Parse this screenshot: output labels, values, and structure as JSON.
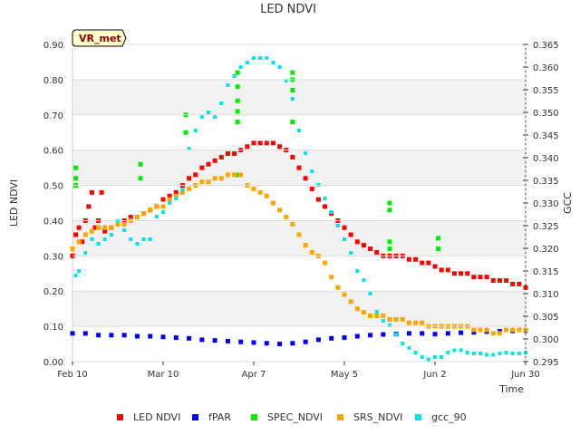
{
  "chart_data": {
    "type": "scatter",
    "title": "LED NDVI",
    "badge": "VR_met",
    "xlabel": "Time",
    "ylabel_left": "LED NDVI",
    "ylabel_right": "GCC",
    "x_range_days": [
      0,
      140
    ],
    "x_ticks": [
      {
        "day": 0,
        "label": "Feb 10"
      },
      {
        "day": 28,
        "label": "Mar 10"
      },
      {
        "day": 56,
        "label": "Apr 7"
      },
      {
        "day": 84,
        "label": "May 5"
      },
      {
        "day": 112,
        "label": "Jun 2"
      },
      {
        "day": 140,
        "label": "Jun 30"
      }
    ],
    "y_left_range": [
      0.0,
      0.9
    ],
    "y_left_ticks": [
      "0.00",
      "0.10",
      "0.20",
      "0.30",
      "0.40",
      "0.50",
      "0.60",
      "0.70",
      "0.80",
      "0.90"
    ],
    "y_right_range": [
      0.295,
      0.365
    ],
    "y_right_ticks": [
      "0.295",
      "0.300",
      "0.305",
      "0.310",
      "0.315",
      "0.320",
      "0.325",
      "0.330",
      "0.335",
      "0.340",
      "0.345",
      "0.350",
      "0.355",
      "0.360",
      "0.365"
    ],
    "series": [
      {
        "name": "LED NDVI",
        "color": "#ff0000",
        "axis": "left",
        "points": [
          [
            0,
            0.3
          ],
          [
            1,
            0.36
          ],
          [
            2,
            0.38
          ],
          [
            3,
            0.34
          ],
          [
            4,
            0.4
          ],
          [
            5,
            0.44
          ],
          [
            6,
            0.48
          ],
          [
            7,
            0.38
          ],
          [
            8,
            0.4
          ],
          [
            9,
            0.48
          ],
          [
            10,
            0.37
          ],
          [
            12,
            0.38
          ],
          [
            14,
            0.39
          ],
          [
            16,
            0.4
          ],
          [
            18,
            0.41
          ],
          [
            20,
            0.41
          ],
          [
            22,
            0.42
          ],
          [
            24,
            0.43
          ],
          [
            26,
            0.44
          ],
          [
            28,
            0.46
          ],
          [
            30,
            0.47
          ],
          [
            32,
            0.48
          ],
          [
            34,
            0.5
          ],
          [
            36,
            0.52
          ],
          [
            38,
            0.53
          ],
          [
            40,
            0.55
          ],
          [
            42,
            0.56
          ],
          [
            44,
            0.57
          ],
          [
            46,
            0.58
          ],
          [
            48,
            0.59
          ],
          [
            50,
            0.59
          ],
          [
            52,
            0.6
          ],
          [
            54,
            0.61
          ],
          [
            56,
            0.62
          ],
          [
            58,
            0.62
          ],
          [
            60,
            0.62
          ],
          [
            62,
            0.62
          ],
          [
            64,
            0.61
          ],
          [
            66,
            0.6
          ],
          [
            68,
            0.58
          ],
          [
            70,
            0.55
          ],
          [
            72,
            0.52
          ],
          [
            74,
            0.49
          ],
          [
            76,
            0.46
          ],
          [
            78,
            0.44
          ],
          [
            80,
            0.42
          ],
          [
            82,
            0.4
          ],
          [
            84,
            0.38
          ],
          [
            86,
            0.36
          ],
          [
            88,
            0.34
          ],
          [
            90,
            0.33
          ],
          [
            92,
            0.32
          ],
          [
            94,
            0.31
          ],
          [
            96,
            0.3
          ],
          [
            98,
            0.3
          ],
          [
            100,
            0.3
          ],
          [
            102,
            0.3
          ],
          [
            104,
            0.29
          ],
          [
            106,
            0.29
          ],
          [
            108,
            0.28
          ],
          [
            110,
            0.28
          ],
          [
            112,
            0.27
          ],
          [
            114,
            0.26
          ],
          [
            116,
            0.26
          ],
          [
            118,
            0.25
          ],
          [
            120,
            0.25
          ],
          [
            122,
            0.25
          ],
          [
            124,
            0.24
          ],
          [
            126,
            0.24
          ],
          [
            128,
            0.24
          ],
          [
            130,
            0.23
          ],
          [
            132,
            0.23
          ],
          [
            134,
            0.23
          ],
          [
            136,
            0.22
          ],
          [
            138,
            0.22
          ],
          [
            140,
            0.21
          ]
        ]
      },
      {
        "name": "fPAR",
        "color": "#0000ff",
        "axis": "left",
        "points": [
          [
            0,
            0.08
          ],
          [
            4,
            0.08
          ],
          [
            8,
            0.075
          ],
          [
            12,
            0.075
          ],
          [
            16,
            0.075
          ],
          [
            20,
            0.072
          ],
          [
            24,
            0.072
          ],
          [
            28,
            0.07
          ],
          [
            32,
            0.068
          ],
          [
            36,
            0.066
          ],
          [
            40,
            0.062
          ],
          [
            44,
            0.06
          ],
          [
            48,
            0.058
          ],
          [
            52,
            0.056
          ],
          [
            56,
            0.054
          ],
          [
            60,
            0.052
          ],
          [
            64,
            0.05
          ],
          [
            68,
            0.052
          ],
          [
            72,
            0.056
          ],
          [
            76,
            0.062
          ],
          [
            80,
            0.066
          ],
          [
            84,
            0.068
          ],
          [
            88,
            0.072
          ],
          [
            92,
            0.075
          ],
          [
            96,
            0.077
          ],
          [
            100,
            0.078
          ],
          [
            104,
            0.08
          ],
          [
            108,
            0.08
          ],
          [
            112,
            0.078
          ],
          [
            116,
            0.08
          ],
          [
            120,
            0.082
          ],
          [
            124,
            0.083
          ],
          [
            128,
            0.085
          ],
          [
            132,
            0.086
          ],
          [
            136,
            0.087
          ],
          [
            140,
            0.088
          ]
        ]
      },
      {
        "name": "SPEC_NDVI",
        "color": "#00ee00",
        "axis": "left",
        "points": [
          [
            1,
            0.55
          ],
          [
            1,
            0.5
          ],
          [
            1,
            0.52
          ],
          [
            21,
            0.56
          ],
          [
            21,
            0.52
          ],
          [
            35,
            0.7
          ],
          [
            35,
            0.65
          ],
          [
            51,
            0.82
          ],
          [
            51,
            0.78
          ],
          [
            51,
            0.74
          ],
          [
            51,
            0.71
          ],
          [
            51,
            0.68
          ],
          [
            51,
            0.53
          ],
          [
            68,
            0.82
          ],
          [
            68,
            0.8
          ],
          [
            68,
            0.77
          ],
          [
            68,
            0.68
          ],
          [
            98,
            0.45
          ],
          [
            98,
            0.43
          ],
          [
            98,
            0.34
          ],
          [
            98,
            0.32
          ],
          [
            113,
            0.35
          ],
          [
            113,
            0.32
          ]
        ]
      },
      {
        "name": "SRS_NDVI",
        "color": "#ffa500",
        "axis": "left",
        "points": [
          [
            0,
            0.32
          ],
          [
            2,
            0.34
          ],
          [
            4,
            0.36
          ],
          [
            6,
            0.37
          ],
          [
            8,
            0.38
          ],
          [
            10,
            0.38
          ],
          [
            12,
            0.38
          ],
          [
            14,
            0.39
          ],
          [
            16,
            0.39
          ],
          [
            18,
            0.4
          ],
          [
            20,
            0.41
          ],
          [
            22,
            0.42
          ],
          [
            24,
            0.43
          ],
          [
            26,
            0.44
          ],
          [
            28,
            0.44
          ],
          [
            30,
            0.46
          ],
          [
            32,
            0.47
          ],
          [
            34,
            0.48
          ],
          [
            36,
            0.49
          ],
          [
            38,
            0.5
          ],
          [
            40,
            0.51
          ],
          [
            42,
            0.51
          ],
          [
            44,
            0.52
          ],
          [
            46,
            0.52
          ],
          [
            48,
            0.53
          ],
          [
            50,
            0.53
          ],
          [
            52,
            0.53
          ],
          [
            54,
            0.5
          ],
          [
            56,
            0.49
          ],
          [
            58,
            0.48
          ],
          [
            60,
            0.47
          ],
          [
            62,
            0.45
          ],
          [
            64,
            0.43
          ],
          [
            66,
            0.41
          ],
          [
            68,
            0.39
          ],
          [
            70,
            0.36
          ],
          [
            72,
            0.33
          ],
          [
            74,
            0.31
          ],
          [
            76,
            0.3
          ],
          [
            78,
            0.28
          ],
          [
            80,
            0.24
          ],
          [
            82,
            0.21
          ],
          [
            84,
            0.19
          ],
          [
            86,
            0.17
          ],
          [
            88,
            0.15
          ],
          [
            90,
            0.14
          ],
          [
            92,
            0.13
          ],
          [
            94,
            0.13
          ],
          [
            96,
            0.13
          ],
          [
            98,
            0.12
          ],
          [
            100,
            0.12
          ],
          [
            102,
            0.12
          ],
          [
            104,
            0.11
          ],
          [
            106,
            0.11
          ],
          [
            108,
            0.11
          ],
          [
            110,
            0.1
          ],
          [
            112,
            0.1
          ],
          [
            114,
            0.1
          ],
          [
            116,
            0.1
          ],
          [
            118,
            0.1
          ],
          [
            120,
            0.1
          ],
          [
            122,
            0.1
          ],
          [
            124,
            0.09
          ],
          [
            126,
            0.09
          ],
          [
            128,
            0.09
          ],
          [
            130,
            0.08
          ],
          [
            132,
            0.08
          ],
          [
            134,
            0.09
          ],
          [
            136,
            0.09
          ],
          [
            138,
            0.09
          ],
          [
            140,
            0.09
          ]
        ]
      },
      {
        "name": "gcc_90",
        "color": "#00e5ee",
        "axis": "right",
        "points": [
          [
            1,
            0.314
          ],
          [
            2,
            0.315
          ],
          [
            4,
            0.319
          ],
          [
            6,
            0.322
          ],
          [
            8,
            0.321
          ],
          [
            10,
            0.322
          ],
          [
            12,
            0.323
          ],
          [
            14,
            0.326
          ],
          [
            16,
            0.324
          ],
          [
            18,
            0.322
          ],
          [
            20,
            0.321
          ],
          [
            22,
            0.322
          ],
          [
            24,
            0.322
          ],
          [
            26,
            0.327
          ],
          [
            28,
            0.328
          ],
          [
            30,
            0.33
          ],
          [
            32,
            0.331
          ],
          [
            34,
            0.333
          ],
          [
            36,
            0.342
          ],
          [
            38,
            0.346
          ],
          [
            40,
            0.349
          ],
          [
            42,
            0.35
          ],
          [
            44,
            0.349
          ],
          [
            46,
            0.352
          ],
          [
            48,
            0.356
          ],
          [
            50,
            0.358
          ],
          [
            52,
            0.36
          ],
          [
            54,
            0.361
          ],
          [
            56,
            0.362
          ],
          [
            58,
            0.362
          ],
          [
            60,
            0.362
          ],
          [
            62,
            0.361
          ],
          [
            64,
            0.36
          ],
          [
            66,
            0.357
          ],
          [
            68,
            0.353
          ],
          [
            70,
            0.346
          ],
          [
            72,
            0.341
          ],
          [
            74,
            0.337
          ],
          [
            76,
            0.334
          ],
          [
            78,
            0.331
          ],
          [
            80,
            0.328
          ],
          [
            82,
            0.325
          ],
          [
            84,
            0.322
          ],
          [
            86,
            0.319
          ],
          [
            88,
            0.315
          ],
          [
            90,
            0.313
          ],
          [
            92,
            0.31
          ],
          [
            94,
            0.306
          ],
          [
            96,
            0.304
          ],
          [
            98,
            0.303
          ],
          [
            100,
            0.301
          ],
          [
            102,
            0.299
          ],
          [
            104,
            0.298
          ],
          [
            106,
            0.297
          ],
          [
            108,
            0.296
          ],
          [
            110,
            0.2955
          ],
          [
            112,
            0.296
          ],
          [
            114,
            0.296
          ],
          [
            116,
            0.297
          ],
          [
            118,
            0.2975
          ],
          [
            120,
            0.2975
          ],
          [
            122,
            0.297
          ],
          [
            124,
            0.2968
          ],
          [
            126,
            0.2968
          ],
          [
            128,
            0.2965
          ],
          [
            130,
            0.2965
          ],
          [
            132,
            0.2968
          ],
          [
            134,
            0.297
          ],
          [
            136,
            0.2968
          ],
          [
            138,
            0.2968
          ],
          [
            140,
            0.297
          ]
        ]
      }
    ],
    "legend_position": "bottom"
  }
}
